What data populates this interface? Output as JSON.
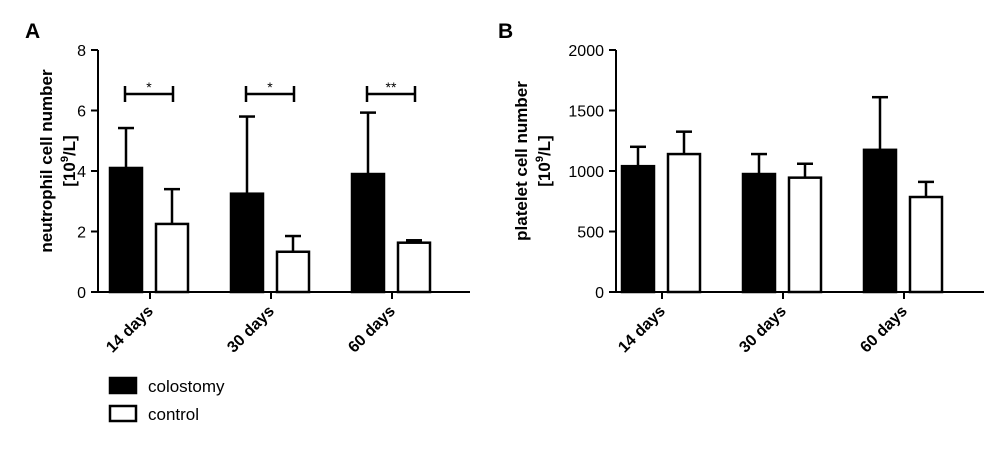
{
  "chart_data": [
    {
      "panel": "A",
      "type": "bar",
      "ylabel_main": "neutrophil cell number",
      "ylabel_unit": {
        "open": "[10",
        "sup": "9",
        "close": "/L]"
      },
      "categories": [
        "14 days",
        "30 days",
        "60 days"
      ],
      "ylim": [
        0,
        8
      ],
      "yticks": [
        0,
        2,
        4,
        6,
        8
      ],
      "series": [
        {
          "name": "colostomy",
          "values": [
            4.1,
            3.25,
            3.9
          ],
          "errors": [
            1.32,
            2.55,
            2.03
          ]
        },
        {
          "name": "control",
          "values": [
            2.25,
            1.33,
            1.63
          ],
          "errors": [
            1.15,
            0.52,
            0.08
          ]
        }
      ],
      "significance": [
        "*",
        "*",
        "**"
      ]
    },
    {
      "panel": "B",
      "type": "bar",
      "ylabel_main": "platelet cell number",
      "ylabel_unit": {
        "open": "[10",
        "sup": "9",
        "close": "/L]"
      },
      "categories": [
        "14 days",
        "30 days",
        "60 days"
      ],
      "ylim": [
        0,
        2000
      ],
      "yticks": [
        0,
        500,
        1000,
        1500,
        2000
      ],
      "series": [
        {
          "name": "colostomy",
          "values": [
            1040,
            975,
            1175
          ],
          "errors": [
            160,
            165,
            435
          ]
        },
        {
          "name": "control",
          "values": [
            1140,
            945,
            785
          ],
          "errors": [
            185,
            115,
            125
          ]
        }
      ],
      "significance": []
    }
  ],
  "legend": {
    "position": "bottom-left",
    "items": [
      {
        "label": "colostomy",
        "fill": "#000000"
      },
      {
        "label": "control",
        "fill": "#ffffff"
      }
    ]
  },
  "colors": {
    "bar_fill_colostomy": "#000000",
    "bar_fill_control": "#ffffff",
    "stroke": "#000000"
  }
}
